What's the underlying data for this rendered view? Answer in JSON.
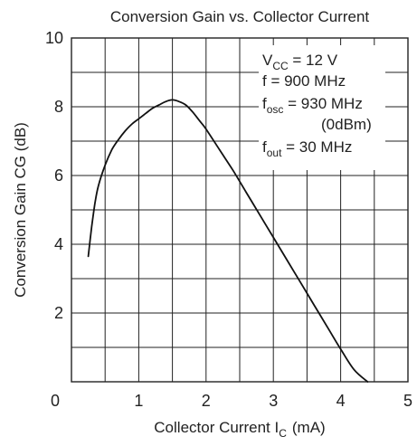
{
  "chart_data": {
    "type": "line",
    "title": "Conversion Gain vs. Collector Current",
    "xlabel": {
      "main": "Collector Current  I",
      "sub": "C",
      "unit": "(mA)"
    },
    "ylabel": "Conversion Gain  CG  (dB)",
    "xlim": [
      0,
      5
    ],
    "ylim": [
      0,
      10
    ],
    "x_ticks": [
      "0",
      "1",
      "2",
      "3",
      "4",
      "5"
    ],
    "y_ticks": [
      "2",
      "4",
      "6",
      "8",
      "10"
    ],
    "grid": {
      "x_step": 0.5,
      "y_step": 1
    },
    "annotations": [
      {
        "main": "V",
        "sub": "CC",
        "rest": " = 12 V"
      },
      {
        "main": "f = 900 MHz",
        "sub": "",
        "rest": ""
      },
      {
        "main": "f",
        "sub": "osc",
        "rest": " = 930 MHz"
      },
      {
        "main": "(0dBm)",
        "sub": "",
        "rest": ""
      },
      {
        "main": "f",
        "sub": "out",
        "rest": " = 30 MHz"
      }
    ],
    "series": [
      {
        "x": [
          0.25,
          0.3,
          0.35,
          0.4,
          0.5,
          0.6,
          0.7,
          0.8,
          0.9,
          1.0,
          1.1,
          1.2,
          1.3,
          1.4,
          1.5,
          1.6,
          1.7,
          1.8,
          1.9,
          2.0,
          2.2,
          2.4,
          2.6,
          2.8,
          3.0,
          3.2,
          3.4,
          3.6,
          3.8,
          4.0,
          4.2,
          4.4
        ],
        "y": [
          3.65,
          4.5,
          5.2,
          5.7,
          6.3,
          6.75,
          7.05,
          7.3,
          7.5,
          7.65,
          7.8,
          7.95,
          8.05,
          8.15,
          8.2,
          8.15,
          8.05,
          7.85,
          7.6,
          7.35,
          6.75,
          6.15,
          5.5,
          4.85,
          4.2,
          3.55,
          2.9,
          2.25,
          1.6,
          0.95,
          0.35,
          0.0
        ]
      }
    ]
  }
}
